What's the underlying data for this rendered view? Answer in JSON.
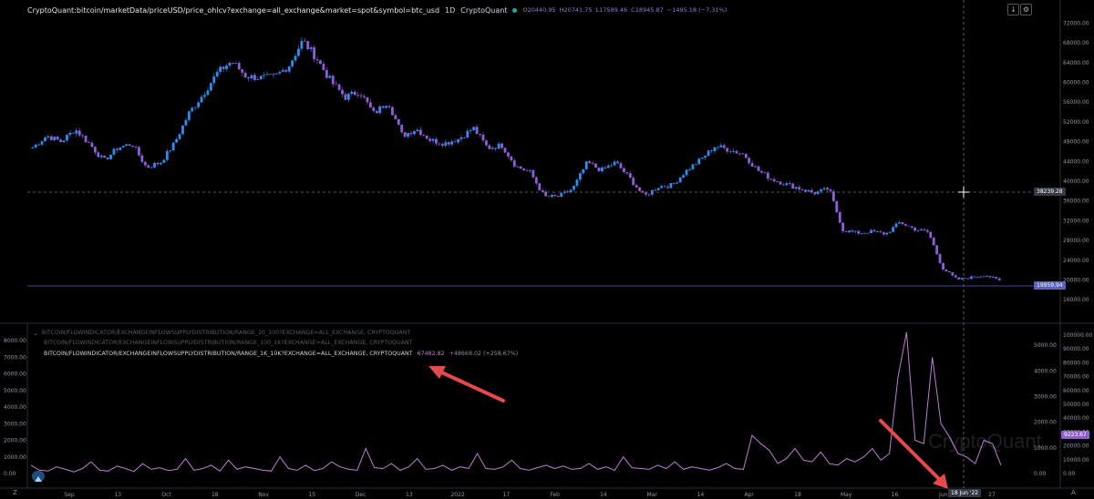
{
  "header": {
    "ticker": "CryptoQuant:bitcoin/marketData/priceUSD/price_ohlcv?exchange=all_exchange&market=spot&symbol=btc_usd",
    "interval": "1D",
    "source": "CryptoQuant",
    "ohlc": {
      "o_label": "O",
      "o": "20440.95",
      "h_label": "H",
      "h": "20741.75",
      "l_label": "L",
      "l": "17589.46",
      "c_label": "C",
      "c": "18945.87",
      "change": "−1495.18 (−7.31%)"
    },
    "buttons": {
      "down_arrow": "↓",
      "settings": "⚙"
    }
  },
  "indicator_legend": [
    {
      "text": "BITCOIN/FLOWINDICATOR/EXCHANGEINFLOWSUPPLYDISTRIBUTION/RANGE_10_100?EXCHANGE=ALL_EXCHANGE, CRYPTOQUANT",
      "state": "hidden"
    },
    {
      "text": "BITCOIN/FLOWINDICATOR/EXCHANGEINFLOWSUPPLYDISTRIBUTION/RANGE_100_1K?EXCHANGE=ALL_EXCHANGE, CRYPTOQUANT",
      "state": "hidden"
    },
    {
      "text": "BITCOIN/FLOWINDICATOR/EXCHANGEINFLOWSUPPLYDISTRIBUTION/RANGE_1K_10K?EXCHANGE=ALL_EXCHANGE, CRYPTOQUANT",
      "state": "visible",
      "value": "67482.82",
      "change": "+48668.02 (+258.67%)"
    }
  ],
  "price_labels": {
    "crosshair_price": "38239.28",
    "last_price": "19959.94",
    "crosshair_date": "18 Jun '22",
    "indicator_last": "9223.67"
  },
  "watermark": "CryptoQuant",
  "bottom_letters": {
    "z": "Z",
    "a": "A"
  },
  "chart_data": [
    {
      "type": "candlestick",
      "title": "",
      "ylabel": "",
      "y_ticks": [
        "16000.00",
        "20000.00",
        "24000.00",
        "28000.00",
        "32000.00",
        "36000.00",
        "40000.00",
        "44000.00",
        "48000.00",
        "52000.00",
        "56000.00",
        "60000.00",
        "64000.00",
        "68000.00",
        "72000.00"
      ],
      "ylim": [
        14000,
        73000
      ],
      "x_ticks": [
        "Sep",
        "13",
        "Oct",
        "18",
        "Nov",
        "15",
        "Dec",
        "13",
        "2022",
        "17",
        "Feb",
        "14",
        "Mar",
        "14",
        "Apr",
        "18",
        "May",
        "16",
        "Jun",
        "27"
      ],
      "colors": {
        "up": "#2d8cf0",
        "down": "#8e5ed8"
      },
      "closes_approx": [
        46800,
        49200,
        48000,
        50500,
        47600,
        44100,
        46800,
        47600,
        42800,
        43800,
        47800,
        53800,
        57600,
        62000,
        64300,
        61300,
        60900,
        61100,
        63300,
        68500,
        64800,
        60100,
        57000,
        58200,
        53600,
        56200,
        49200,
        50600,
        48300,
        47700,
        48600,
        50800,
        46700,
        47300,
        43000,
        41800,
        36800,
        36900,
        38500,
        43800,
        42200,
        43800,
        40600,
        36900,
        38900,
        39200,
        42200,
        44400,
        47100,
        46400,
        45500,
        42200,
        40400,
        39400,
        38500,
        37600,
        38500,
        30100,
        29500,
        29800,
        29300,
        31700,
        30300,
        29700,
        22400,
        20100,
        20500,
        21000,
        19900
      ]
    },
    {
      "type": "line",
      "title": "",
      "series_name": "BITCOIN/FLOWINDICATOR/EXCHANGEINFLOWSUPPLYDISTRIBUTION/RANGE_1K_10K?EXCHANGE=ALL_EXCHANGE, CRYPTOQUANT",
      "left_y_ticks": [
        "0.00",
        "1000.00",
        "2000.00",
        "3000.00",
        "4000.00",
        "5000.00",
        "6000.00",
        "7000.00",
        "8000.00"
      ],
      "right_y_ticks": [
        "0.00",
        "1000.00",
        "2000.00",
        "3000.00",
        "4000.00",
        "5000.00"
      ],
      "far_right_y_ticks": [
        "0.00",
        "10000.00",
        "20000.00",
        "30000.00",
        "40000.00",
        "50000.00",
        "60000.00",
        "70000.00",
        "80000.00",
        "90000.00",
        "100000.00"
      ],
      "color": "#c27bd6",
      "values_approx": [
        500,
        200,
        150,
        400,
        250,
        100,
        300,
        700,
        200,
        150,
        450,
        300,
        120,
        600,
        250,
        350,
        180,
        250,
        900,
        200,
        300,
        500,
        150,
        800,
        250,
        400,
        300,
        200,
        150,
        1000,
        300,
        200,
        500,
        180,
        300,
        700,
        400,
        250,
        200,
        1500,
        350,
        300,
        600,
        200,
        400,
        900,
        250,
        300,
        500,
        200,
        400,
        300,
        1200,
        300,
        250,
        400,
        800,
        300,
        200,
        350,
        500,
        300,
        450,
        250,
        300,
        600,
        250,
        400,
        200,
        1000,
        350,
        300,
        250,
        500,
        300,
        700,
        250,
        400,
        300,
        200,
        350,
        600,
        300,
        250,
        2300,
        1800,
        1400,
        600,
        900,
        1500,
        800,
        700,
        1300,
        600,
        500,
        900,
        700,
        1000,
        1500,
        800,
        1200,
        5800,
        8500,
        2000,
        1800,
        7000,
        3000,
        2200,
        1200,
        1000,
        600,
        2000,
        1800,
        500
      ]
    }
  ]
}
